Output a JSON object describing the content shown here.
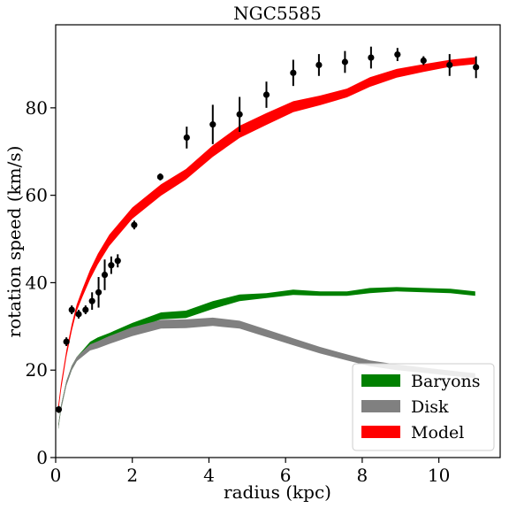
{
  "chart_data": {
    "type": "line",
    "title": "NGC5585",
    "xlabel": "radius (kpc)",
    "ylabel": "rotation speed (km/s)",
    "xlim": [
      0,
      11.6
    ],
    "ylim": [
      0,
      99
    ],
    "xticks": [
      0,
      2,
      4,
      6,
      8,
      10
    ],
    "yticks": [
      0,
      20,
      40,
      60,
      80
    ],
    "grid": false,
    "legend_position": "bottom-right",
    "series": [
      {
        "name": "Baryons",
        "color": "#008000",
        "style": "band",
        "x": [
          0.07,
          0.14,
          0.28,
          0.42,
          0.55,
          0.7,
          0.9,
          1.1,
          1.4,
          2.0,
          2.75,
          3.4,
          4.1,
          4.8,
          5.5,
          6.2,
          6.9,
          7.6,
          8.2,
          8.9,
          9.6,
          10.3,
          10.95
        ],
        "upper": [
          7.5,
          12,
          17.5,
          21,
          23,
          24.5,
          26.5,
          27.5,
          28.5,
          30.8,
          33.2,
          33.6,
          35.8,
          37.3,
          37.6,
          38.4,
          38.0,
          38.0,
          38.8,
          39.0,
          38.8,
          38.6,
          38.0
        ],
        "lower": [
          6.5,
          11,
          16.5,
          20,
          22,
          23.5,
          25,
          26,
          27,
          29.3,
          31.6,
          31.9,
          34.0,
          35.8,
          36.5,
          37.2,
          37.0,
          37.0,
          37.6,
          38.0,
          37.8,
          37.6,
          37.0
        ]
      },
      {
        "name": "Disk",
        "color": "#808080",
        "style": "band",
        "x": [
          0.07,
          0.14,
          0.28,
          0.42,
          0.55,
          0.7,
          0.9,
          1.1,
          1.4,
          2.0,
          2.75,
          3.4,
          4.1,
          4.8,
          5.5,
          6.2,
          6.9,
          7.6,
          8.2,
          8.9,
          9.6,
          10.3,
          10.95
        ],
        "upper": [
          7.5,
          12,
          17.5,
          21,
          23,
          24.3,
          25.9,
          26.6,
          27.8,
          29.8,
          31.5,
          31.6,
          32.0,
          31.3,
          29.3,
          27.3,
          25.3,
          23.6,
          22.2,
          21.3,
          20.6,
          19.9,
          19.3
        ],
        "lower": [
          6.5,
          11,
          16.5,
          20,
          22,
          23.1,
          24.5,
          25.0,
          26.0,
          27.8,
          29.5,
          29.6,
          30.1,
          29.5,
          27.6,
          25.7,
          23.8,
          22.2,
          20.9,
          20.0,
          19.4,
          18.7,
          18.2
        ]
      },
      {
        "name": "Model",
        "color": "#ff0000",
        "style": "band",
        "x": [
          0.07,
          0.14,
          0.28,
          0.42,
          0.55,
          0.7,
          0.9,
          1.1,
          1.4,
          2.0,
          2.75,
          3.4,
          4.1,
          4.8,
          5.5,
          6.2,
          6.9,
          7.6,
          8.2,
          8.9,
          9.6,
          10.3,
          10.95
        ],
        "upper": [
          12,
          17,
          24.5,
          30.5,
          35,
          38.6,
          43.0,
          46.6,
          51.0,
          57.2,
          62.5,
          66.0,
          71.4,
          75.9,
          78.8,
          81.5,
          82.8,
          84.4,
          87.0,
          88.9,
          90.0,
          91.0,
          91.6
        ],
        "lower": [
          10.5,
          15.5,
          23,
          29,
          33.5,
          36.8,
          40.8,
          44.2,
          48.4,
          54.6,
          59.9,
          63.6,
          68.8,
          73.1,
          76.1,
          79.0,
          80.6,
          82.4,
          84.8,
          86.9,
          88.2,
          89.4,
          90.0
        ]
      },
      {
        "name": "",
        "color": "#000000",
        "style": "errorbar",
        "x": [
          0.08,
          0.28,
          0.42,
          0.6,
          0.78,
          0.95,
          1.12,
          1.28,
          1.45,
          1.62,
          2.05,
          2.73,
          3.42,
          4.1,
          4.8,
          5.5,
          6.2,
          6.87,
          7.55,
          8.23,
          8.92,
          9.6,
          10.28,
          10.97
        ],
        "y": [
          11.0,
          26.5,
          33.8,
          32.8,
          33.8,
          35.8,
          37.8,
          41.8,
          44.0,
          45.0,
          53.2,
          64.2,
          73.2,
          76.2,
          78.5,
          83.0,
          88.0,
          89.8,
          90.5,
          91.5,
          92.2,
          90.8,
          89.8,
          89.3
        ],
        "err": [
          0.8,
          1.0,
          1.0,
          1.0,
          1.0,
          2.0,
          3.5,
          3.5,
          2.0,
          1.5,
          1.0,
          0.8,
          2.5,
          4.5,
          4.0,
          3.0,
          3.0,
          2.5,
          2.5,
          2.5,
          1.5,
          1.0,
          2.5,
          2.5
        ]
      }
    ]
  }
}
